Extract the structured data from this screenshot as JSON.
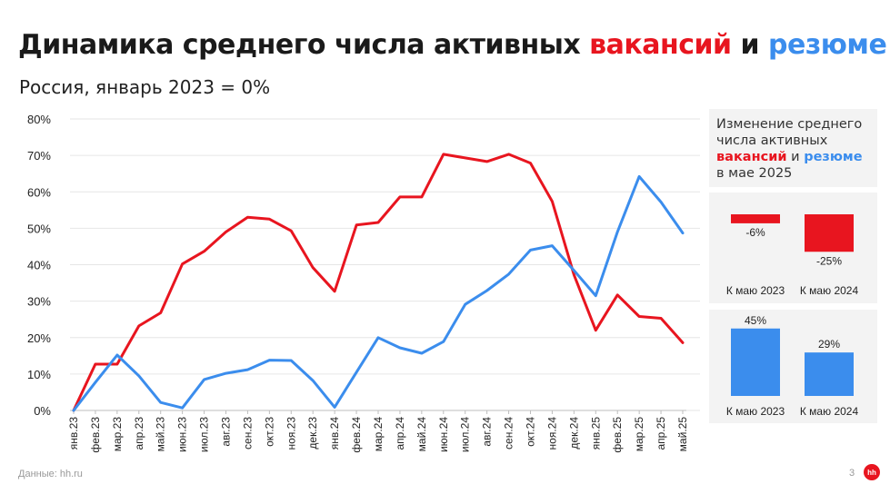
{
  "header": {
    "title_prefix": "Динамика среднего числа активных",
    "title_vacancies": "вакансий",
    "title_and": "и",
    "title_resumes": "резюме",
    "subtitle": "Россия, январь 2023 = 0%"
  },
  "colors": {
    "vacancies": "#e8151f",
    "resumes": "#3b8ded",
    "text": "#1a1a1a",
    "panel_bg": "#f3f3f3"
  },
  "side_panel": {
    "title_line1": "Изменение среднего",
    "title_line2": "числа активных",
    "title_vacancies": "вакансий",
    "title_and": "и",
    "title_resumes": "резюме",
    "title_line4": "в мае 2025"
  },
  "footer": {
    "source": "Данные: hh.ru",
    "page": "3",
    "logo_text": "hh"
  },
  "chart_data": [
    {
      "type": "line",
      "title": "",
      "xlabel": "",
      "ylabel": "",
      "ylim": [
        0,
        80
      ],
      "yticks": [
        "0%",
        "10%",
        "20%",
        "30%",
        "40%",
        "50%",
        "60%",
        "70%",
        "80%"
      ],
      "grid": true,
      "categories": [
        "янв.23",
        "фев.23",
        "мар.23",
        "апр.23",
        "май.23",
        "июн.23",
        "июл.23",
        "авг.23",
        "сен.23",
        "окт.23",
        "ноя.23",
        "дек.23",
        "янв.24",
        "фев.24",
        "мар.24",
        "апр.24",
        "май.24",
        "июн.24",
        "июл.24",
        "авг.24",
        "сен.24",
        "окт.24",
        "ноя.24",
        "дек.24",
        "янв.25",
        "фев.25",
        "мар.25",
        "апр.25",
        "май.25"
      ],
      "series": [
        {
          "name": "вакансий",
          "color": "#e8151f",
          "values": [
            0,
            12.7,
            12.7,
            23.2,
            26.8,
            40.2,
            43.7,
            49.0,
            53.0,
            52.5,
            49.3,
            39.2,
            32.7,
            50.9,
            51.6,
            58.6,
            58.6,
            70.3,
            69.3,
            68.3,
            70.3,
            67.9,
            57.4,
            37.2,
            22.0,
            31.7,
            25.8,
            25.3,
            18.6
          ]
        },
        {
          "name": "резюме",
          "color": "#3b8ded",
          "values": [
            0,
            7.7,
            15.2,
            9.5,
            2.2,
            0.7,
            8.5,
            10.2,
            11.2,
            13.8,
            13.7,
            8.2,
            0.9,
            10.5,
            20.0,
            17.2,
            15.7,
            18.9,
            29.1,
            32.9,
            37.4,
            44.0,
            45.2,
            38.4,
            31.5,
            49.0,
            64.2,
            57.2,
            48.7
          ]
        }
      ]
    },
    {
      "type": "bar",
      "title": "",
      "categories": [
        "К маю 2023",
        "К маю 2024"
      ],
      "values": [
        -6,
        -25
      ],
      "labels": [
        "-6%",
        "-25%"
      ],
      "color": "#e8151f"
    },
    {
      "type": "bar",
      "title": "",
      "categories": [
        "К маю 2023",
        "К маю 2024"
      ],
      "values": [
        45,
        29
      ],
      "labels": [
        "45%",
        "29%"
      ],
      "color": "#3b8ded"
    }
  ]
}
